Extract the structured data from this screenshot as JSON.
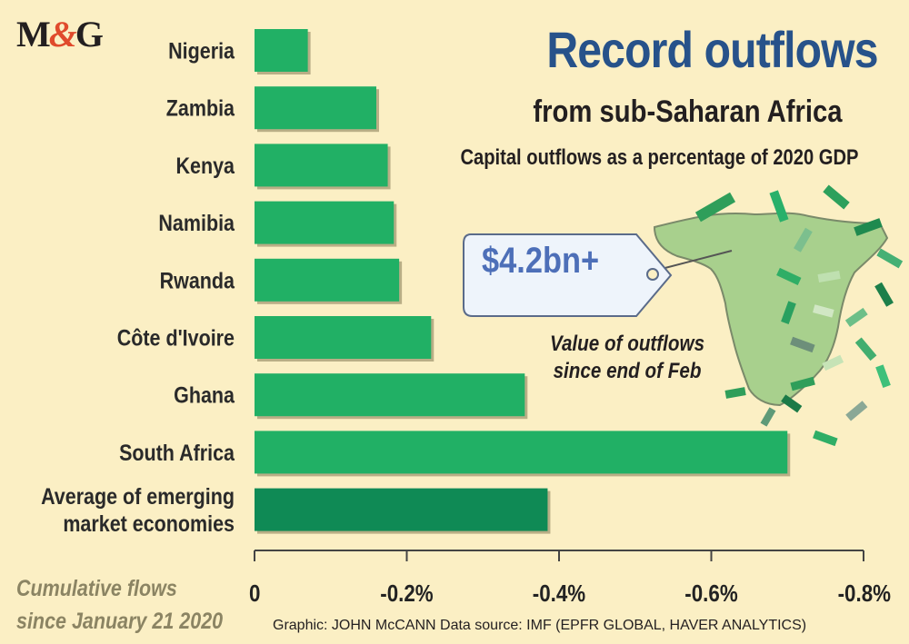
{
  "logo": {
    "m": "M",
    "amp": "&",
    "g": "G"
  },
  "title": "Record outflows",
  "subtitle": "from sub-Saharan Africa",
  "description": "Capital outflows as a percentage of 2020 GDP",
  "tag_value": "$4.2bn+",
  "annotation": {
    "line1": "Value of outflows",
    "line2": "since end of Feb"
  },
  "note": {
    "line1": "Cumulative flows",
    "line2": "since January 21 2020"
  },
  "credit": "Graphic: JOHN McCANN  Data source: IMF (EPFR GLOBAL, HAVER ANALYTICS)",
  "colors": {
    "background": "#fbefc4",
    "bar": "#21b065",
    "bar_highlight": "#0f8a55",
    "title": "#27528a",
    "map": "#a8d08d"
  },
  "chart_data": {
    "type": "bar",
    "orientation": "horizontal",
    "categories": [
      [
        "Nigeria"
      ],
      [
        "Zambia"
      ],
      [
        "Kenya"
      ],
      [
        "Namibia"
      ],
      [
        "Rwanda"
      ],
      [
        "Côte d'Ivoire"
      ],
      [
        "Ghana"
      ],
      [
        "South Africa"
      ],
      [
        "Average of emerging",
        "market economies"
      ]
    ],
    "values": [
      -0.07,
      -0.16,
      -0.175,
      -0.183,
      -0.19,
      -0.232,
      -0.355,
      -0.7,
      -0.385
    ],
    "highlight_index": 8,
    "xlim": [
      0,
      -0.8
    ],
    "ticks": [
      0,
      -0.2,
      -0.4,
      -0.6,
      -0.8
    ],
    "tick_labels": [
      "0",
      "-0.2%",
      "-0.4%",
      "-0.6%",
      "-0.8%"
    ]
  }
}
